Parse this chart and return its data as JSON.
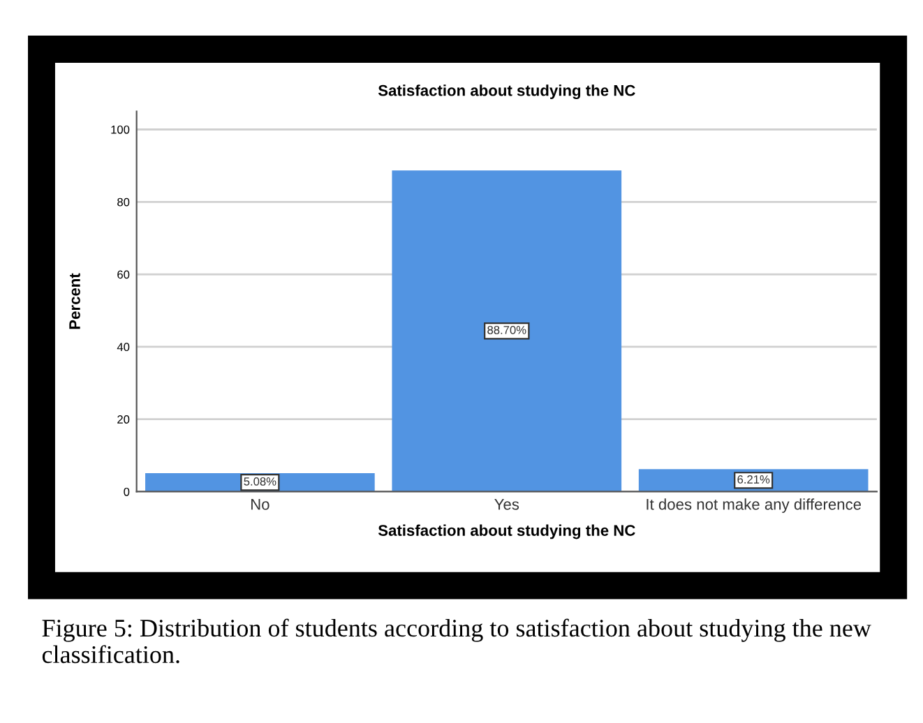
{
  "chart_data": {
    "type": "bar",
    "title": "Satisfaction about studying the NC",
    "xlabel": "Satisfaction about studying the NC",
    "ylabel": "Percent",
    "categories": [
      "No",
      "Yes",
      "It does not make any difference"
    ],
    "values": [
      5.08,
      88.7,
      6.21
    ],
    "value_labels": [
      "5.08%",
      "88.70%",
      "6.21%"
    ],
    "color": "#5294e2",
    "ylim": [
      0,
      105
    ],
    "yticks": [
      0,
      20,
      40,
      60,
      80,
      100
    ],
    "grid": "y",
    "annotations": [
      "Figure 5: Distribution of students according to satisfaction about studying the new classification."
    ]
  }
}
